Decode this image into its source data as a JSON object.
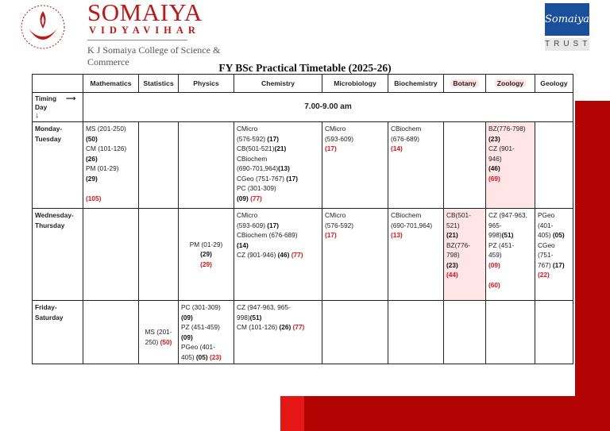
{
  "header": {
    "brand_name": "SOMAIYA",
    "brand_subtitle": "VIDYAVIHAR",
    "college_name": "K J Somaiya College of Science & Commerce",
    "emblem_text": "Somaiya Vidyavihar",
    "trust_logo_script": "Somaiya",
    "trust_logo_label": "TRUST"
  },
  "title": "FY BSc Practical Timetable (2025-26)",
  "colors": {
    "brand_red": "#c01818",
    "accent_red": "#b30404",
    "total_red": "#e8141b",
    "trust_blue": "#1a4f9c"
  },
  "table": {
    "columns": [
      "",
      "Mathematics",
      "Statistics",
      "Physics",
      "Chemistry",
      "Microbiology",
      "Biochemistry",
      "Botany",
      "Zoology",
      "Geology"
    ],
    "highlighted_columns": [
      "Botany",
      "Zoology"
    ],
    "timing_label": "Timing",
    "day_label": "Day",
    "timing_value": "7.00-9.00 am",
    "rows": [
      {
        "day": "Monday-Tuesday",
        "day_parts": [
          "Monday-",
          "Tuesday"
        ],
        "cells": {
          "mathematics": [
            {
              "t": "MS (201-250)"
            },
            {
              "b": "(50)"
            },
            {
              "t": "CM (101-126)"
            },
            {
              "b": "(26)"
            },
            {
              "t": "PM (01-29)"
            },
            {
              "b": "(29)"
            },
            {
              "t": ""
            },
            {
              "r": "(105)"
            }
          ],
          "statistics": [],
          "physics": [],
          "chemistry": [
            {
              "t": "CMicro"
            },
            {
              "t": "(576-592) ",
              "b": "(17)"
            },
            {
              "t": "CB(501-521)",
              "b": "(21)"
            },
            {
              "t": "CBiochem"
            },
            {
              "t": "(690-701,964)",
              "b": "(13)"
            },
            {
              "t": " CGeo (751-767) ",
              "b": "(17)"
            },
            {
              "t": " PC (301-309)"
            },
            {
              "b": "(09) ",
              "r": "(77)"
            }
          ],
          "microbiology": [
            {
              "t": "CMicro"
            },
            {
              "t": "(593-609)"
            },
            {
              "r": "(17)"
            }
          ],
          "biochemistry": [
            {
              "t": "CBiochem"
            },
            {
              "t": "(676-689)"
            },
            {
              "r": "(14)"
            }
          ],
          "botany": [],
          "zoology": [
            {
              "t": "BZ(776-798)"
            },
            {
              "b": "(23)"
            },
            {
              "t": "CZ (901-"
            },
            {
              "t": "946)"
            },
            {
              "b": "(46)"
            },
            {
              "r": "(69)"
            }
          ],
          "geology": []
        }
      },
      {
        "day": "Wednesday-Thursday",
        "day_parts": [
          "Wednesday-",
          "Thursday"
        ],
        "cells": {
          "mathematics": [],
          "statistics": [],
          "physics": [
            {
              "t": "PM (01-29)"
            },
            {
              "b": "(29)"
            },
            {
              "r": "(29)"
            }
          ],
          "chemistry": [
            {
              "t": "CMicro"
            },
            {
              "t": "(593-609) ",
              "b": "(17)"
            },
            {
              "t": "CBiochem (676-689)"
            },
            {
              "b": "(14)"
            },
            {
              "t": "CZ (901-946) ",
              "b": "(46) ",
              "r": "(77)"
            }
          ],
          "microbiology": [
            {
              "t": "CMicro"
            },
            {
              "t": "(576-592)"
            },
            {
              "r": "(17)"
            }
          ],
          "biochemistry": [
            {
              "t": "CBiochem"
            },
            {
              "t": "(690-701,964)"
            },
            {
              "r": "(13)"
            }
          ],
          "botany": [
            {
              "t": "CB(501-"
            },
            {
              "t": "521)"
            },
            {
              "b": "(21)"
            },
            {
              "t": "BZ(776-"
            },
            {
              "t": "798)"
            },
            {
              "b": "(23)"
            },
            {
              "r": "(44)"
            }
          ],
          "zoology": [
            {
              "t": "CZ (947-963,"
            },
            {
              "t": "965-"
            },
            {
              "t": "998)",
              "b": "(51)"
            },
            {
              "t": "PZ (451-"
            },
            {
              "t": "459)"
            },
            {
              "r": "(09)"
            },
            {
              "t": ""
            },
            {
              "r": "(60)"
            }
          ],
          "geology": [
            {
              "t": "PGeo"
            },
            {
              "t": "(401-"
            },
            {
              "t": "405) ",
              "b": "(05)"
            },
            {
              "t": "CGeo"
            },
            {
              "t": "(751-"
            },
            {
              "t": "767) ",
              "b": "(17)"
            },
            {
              "r": "(22)"
            }
          ]
        }
      },
      {
        "day": "Friday-Saturday",
        "day_parts": [
          "Friday-",
          "Saturday"
        ],
        "cells": {
          "mathematics": [],
          "statistics": [
            {
              "t": ""
            },
            {
              "t": "MS (201-"
            },
            {
              "t": "250) ",
              "r": "(50)"
            }
          ],
          "physics": [
            {
              "t": "PC (301-309)"
            },
            {
              "b": "(09)"
            },
            {
              "t": "PZ (451-459)"
            },
            {
              "b": "(09)"
            },
            {
              "t": "PGeo (401-"
            },
            {
              "t": "405) ",
              "b": "(05) ",
              "r": "(23)"
            }
          ],
          "chemistry": [
            {
              "t": "CZ (947-963, 965-"
            },
            {
              "t": "998)",
              "b": "(51)"
            },
            {
              "t": "CM (101-126) ",
              "b": "(26)  ",
              "r": "(77)"
            }
          ],
          "microbiology": [],
          "biochemistry": [],
          "botany": [],
          "zoology": [],
          "geology": []
        }
      }
    ]
  }
}
